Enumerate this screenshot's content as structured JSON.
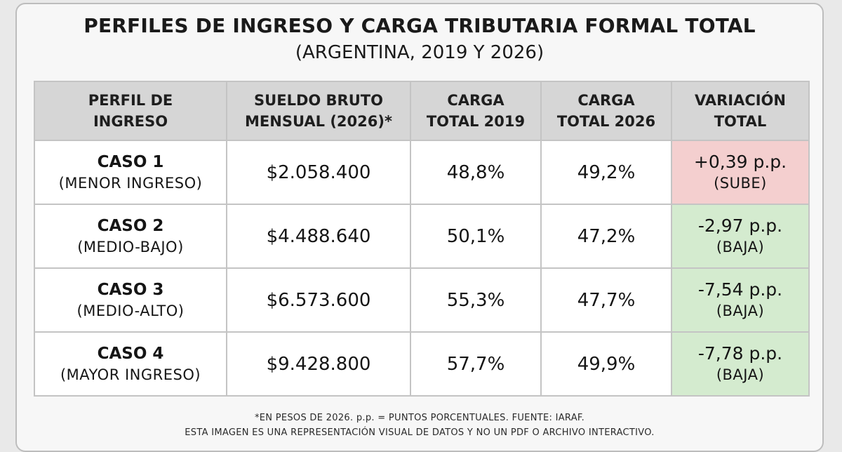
{
  "title": "PERFILES DE INGRESO Y CARGA TRIBUTARIA FORMAL TOTAL",
  "subtitle": "(ARGENTINA, 2019 Y 2026)",
  "table": {
    "headers": [
      [
        "PERFIL DE",
        "INGRESO"
      ],
      [
        "SUELDO BRUTO",
        "MENSUAL (2026)*"
      ],
      [
        "CARGA",
        "TOTAL 2019"
      ],
      [
        "CARGA",
        "TOTAL 2026"
      ],
      [
        "VARIACIÓN",
        "TOTAL"
      ]
    ],
    "rows": [
      {
        "case": "CASO 1",
        "profile": "(MENOR INGRESO)",
        "salary": "$2.058.400",
        "load_2019": "48,8%",
        "load_2026": "49,2%",
        "variation": "+0,39 p.p.",
        "direction": "(SUBE)"
      },
      {
        "case": "CASO 2",
        "profile": "(MEDIO-BAJO)",
        "salary": "$4.488.640",
        "load_2019": "50,1%",
        "load_2026": "47,2%",
        "variation": "-2,97 p.p.",
        "direction": "(BAJA)"
      },
      {
        "case": "CASO 3",
        "profile": "(MEDIO-ALTO)",
        "salary": "$6.573.600",
        "load_2019": "55,3%",
        "load_2026": "47,7%",
        "variation": "-7,54 p.p.",
        "direction": "(BAJA)"
      },
      {
        "case": "CASO 4",
        "profile": "(MAYOR INGRESO)",
        "salary": "$9.428.800",
        "load_2019": "57,7%",
        "load_2026": "49,9%",
        "variation": "-7,78 p.p.",
        "direction": "(BAJA)"
      }
    ]
  },
  "footnotes": [
    "*EN PESOS DE 2026. p.p. = PUNTOS PORCENTUALES. FUENTE: IARAF.",
    "ESTA IMAGEN ES UNA REPRESENTACIÓN VISUAL DE DATOS Y NO UN PDF O ARCHIVO INTERACTIVO."
  ],
  "colors": {
    "increase_cell": "#f4cfcf",
    "decrease_cell": "#d4ebcf",
    "header_bg": "#d6d6d6"
  }
}
